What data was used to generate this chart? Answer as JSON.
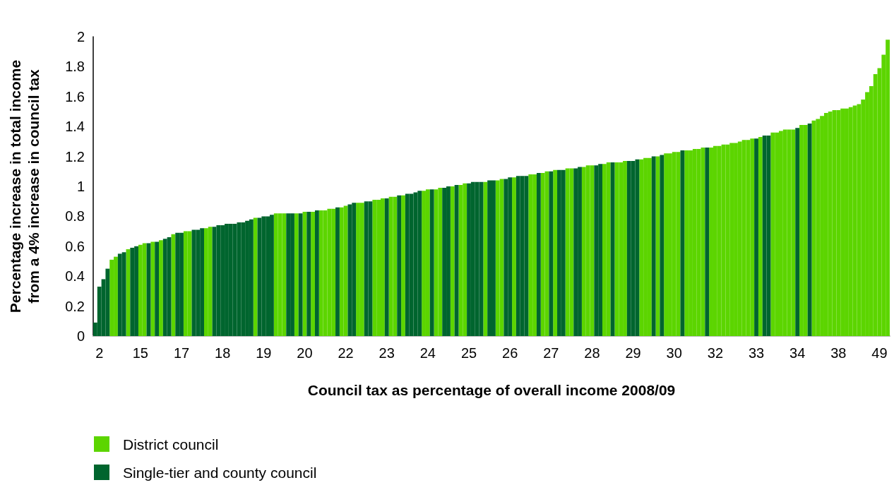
{
  "chart_data": {
    "type": "bar",
    "xlabel": "Council tax as percentage of overall income 2008/09",
    "ylabel": "Percentage increase in total income\nfrom a 4% increase in council tax",
    "categories": [
      null,
      "2",
      null,
      null,
      null,
      null,
      null,
      null,
      null,
      null,
      null,
      "15",
      null,
      null,
      null,
      null,
      null,
      null,
      null,
      null,
      null,
      "17",
      null,
      null,
      null,
      null,
      null,
      null,
      null,
      null,
      null,
      "18",
      null,
      null,
      null,
      null,
      null,
      null,
      null,
      null,
      null,
      "19",
      null,
      null,
      null,
      null,
      null,
      null,
      null,
      null,
      null,
      "20",
      null,
      null,
      null,
      null,
      null,
      null,
      null,
      null,
      null,
      "22",
      null,
      null,
      null,
      null,
      null,
      null,
      null,
      null,
      null,
      "23",
      null,
      null,
      null,
      null,
      null,
      null,
      null,
      null,
      null,
      "24",
      null,
      null,
      null,
      null,
      null,
      null,
      null,
      null,
      null,
      "25",
      null,
      null,
      null,
      null,
      null,
      null,
      null,
      null,
      null,
      "26",
      null,
      null,
      null,
      null,
      null,
      null,
      null,
      null,
      null,
      "27",
      null,
      null,
      null,
      null,
      null,
      null,
      null,
      null,
      null,
      "28",
      null,
      null,
      null,
      null,
      null,
      null,
      null,
      null,
      null,
      "29",
      null,
      null,
      null,
      null,
      null,
      null,
      null,
      null,
      null,
      "30",
      null,
      null,
      null,
      null,
      null,
      null,
      null,
      null,
      null,
      "32",
      null,
      null,
      null,
      null,
      null,
      null,
      null,
      null,
      null,
      "33",
      null,
      null,
      null,
      null,
      null,
      null,
      null,
      null,
      null,
      "34",
      null,
      null,
      null,
      null,
      null,
      null,
      null,
      null,
      null,
      "38",
      null,
      null,
      null,
      null,
      null,
      null,
      null,
      null,
      null,
      "49",
      null,
      null
    ],
    "series": [
      {
        "name": "District council",
        "color": "#5cd500",
        "values": [
          null,
          null,
          null,
          null,
          0.51,
          0.53,
          null,
          null,
          0.58,
          null,
          null,
          0.61,
          0.62,
          null,
          0.63,
          null,
          0.64,
          null,
          null,
          0.68,
          null,
          null,
          0.7,
          0.7,
          null,
          null,
          null,
          0.72,
          0.73,
          null,
          null,
          null,
          null,
          null,
          null,
          null,
          null,
          null,
          null,
          0.79,
          null,
          null,
          null,
          null,
          0.82,
          0.82,
          0.82,
          null,
          null,
          0.82,
          null,
          0.83,
          null,
          0.83,
          null,
          0.84,
          0.84,
          0.85,
          0.85,
          null,
          0.86,
          0.87,
          null,
          null,
          0.89,
          0.89,
          null,
          null,
          0.91,
          0.91,
          0.92,
          null,
          0.93,
          0.93,
          null,
          0.94,
          null,
          null,
          null,
          null,
          0.97,
          0.98,
          null,
          0.98,
          0.99,
          null,
          null,
          1,
          null,
          1.01,
          1.02,
          null,
          null,
          null,
          null,
          1.03,
          null,
          null,
          1.04,
          1.05,
          null,
          null,
          1.06,
          null,
          null,
          null,
          1.08,
          1.08,
          null,
          1.09,
          1.1,
          null,
          1.11,
          null,
          null,
          1.12,
          1.12,
          null,
          null,
          1.13,
          1.14,
          1.14,
          null,
          null,
          1.15,
          1.16,
          null,
          1.16,
          1.16,
          1.17,
          null,
          null,
          null,
          1.18,
          1.19,
          1.19,
          null,
          1.2,
          null,
          1.22,
          1.22,
          1.23,
          1.23,
          null,
          1.24,
          1.24,
          1.25,
          1.25,
          1.26,
          null,
          1.26,
          1.27,
          1.27,
          1.28,
          1.28,
          1.29,
          1.29,
          1.3,
          1.31,
          1.31,
          1.32,
          null,
          1.33,
          null,
          null,
          1.36,
          1.36,
          1.37,
          1.38,
          1.38,
          1.38,
          null,
          1.41,
          1.41,
          null,
          1.44,
          1.45,
          1.47,
          1.49,
          1.5,
          1.51,
          1.51,
          1.52,
          1.52,
          1.53,
          1.54,
          1.55,
          1.58,
          1.63,
          1.67,
          1.75,
          1.79,
          1.88,
          1.98
        ]
      },
      {
        "name": "Single-tier and county council",
        "color": "#00652e",
        "values": [
          0.09,
          0.33,
          0.38,
          0.45,
          null,
          null,
          0.55,
          0.56,
          null,
          0.59,
          0.6,
          null,
          null,
          0.62,
          null,
          0.63,
          null,
          0.65,
          0.66,
          null,
          0.69,
          0.69,
          null,
          null,
          0.71,
          0.71,
          0.72,
          null,
          null,
          0.73,
          0.74,
          0.74,
          0.75,
          0.75,
          0.75,
          0.76,
          0.76,
          0.77,
          0.78,
          null,
          0.79,
          0.8,
          0.8,
          0.81,
          null,
          null,
          null,
          0.82,
          0.82,
          null,
          0.82,
          null,
          0.83,
          null,
          0.84,
          null,
          null,
          null,
          null,
          0.86,
          null,
          null,
          0.88,
          0.89,
          null,
          null,
          0.9,
          0.9,
          null,
          null,
          null,
          0.92,
          null,
          null,
          0.94,
          null,
          0.95,
          0.95,
          0.96,
          0.97,
          null,
          null,
          0.98,
          null,
          null,
          0.99,
          1,
          null,
          1.01,
          null,
          null,
          1.02,
          1.03,
          1.03,
          1.03,
          null,
          1.04,
          1.04,
          null,
          null,
          1.05,
          1.06,
          null,
          1.07,
          1.07,
          1.07,
          null,
          null,
          1.09,
          null,
          null,
          1.1,
          null,
          1.11,
          1.11,
          null,
          null,
          1.12,
          1.13,
          null,
          null,
          null,
          1.14,
          1.15,
          null,
          null,
          1.16,
          null,
          null,
          null,
          1.17,
          1.17,
          1.18,
          null,
          null,
          null,
          1.2,
          null,
          1.21,
          null,
          null,
          null,
          null,
          1.24,
          null,
          null,
          null,
          null,
          null,
          1.26,
          null,
          null,
          null,
          null,
          null,
          null,
          null,
          null,
          null,
          null,
          null,
          1.32,
          null,
          1.34,
          1.34,
          null,
          null,
          null,
          null,
          null,
          null,
          1.39,
          null,
          null,
          1.42,
          null,
          null,
          null,
          null,
          null,
          null,
          null,
          null,
          null,
          null,
          null,
          null,
          null,
          null,
          null,
          null,
          null,
          null,
          null
        ]
      }
    ],
    "ylim": [
      0,
      2
    ],
    "yticks": [
      0,
      0.2,
      0.4,
      0.6,
      0.8,
      1,
      1.2,
      1.4,
      1.6,
      1.8,
      2
    ],
    "grid": false,
    "legend": "bottom left"
  }
}
